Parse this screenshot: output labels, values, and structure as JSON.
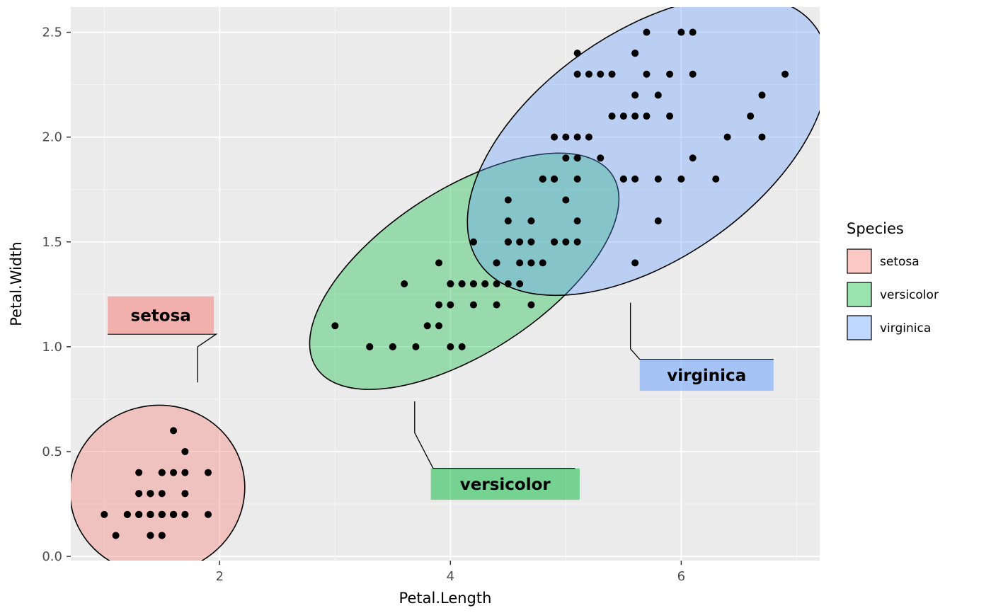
{
  "figure": {
    "background": "#FFFFFF",
    "panel_background": "#EBEBEB",
    "grid_color": "#FFFFFF",
    "axis_text_color": "#4D4D4D",
    "tick_mark_color": "#333333",
    "axis_title_color": "#000000"
  },
  "chart_data": {
    "type": "scatter",
    "xlabel": "Petal.Length",
    "ylabel": "Petal.Width",
    "xlim": [
      0.71,
      7.2
    ],
    "ylim": [
      -0.02,
      2.62
    ],
    "x_major_ticks": [
      2,
      4,
      6
    ],
    "x_tick_labels": [
      "2",
      "4",
      "6"
    ],
    "x_minor_ticks": [
      1,
      3,
      5,
      7
    ],
    "y_major_ticks": [
      0,
      0.5,
      1,
      1.5,
      2,
      2.5
    ],
    "y_tick_labels": [
      "0.0",
      "0.5",
      "1.0",
      "1.5",
      "2.0",
      "2.5"
    ],
    "y_minor_ticks": [
      0.25,
      0.75,
      1.25,
      1.75,
      2.25
    ],
    "grid": true,
    "point_color": "#000000",
    "legend": {
      "title": "Species",
      "position": "right",
      "entries": [
        {
          "label": "setosa",
          "color": "#F8766D"
        },
        {
          "label": "versicolor",
          "color": "#00BA38"
        },
        {
          "label": "virginica",
          "color": "#619CFF"
        }
      ]
    },
    "series": [
      {
        "name": "setosa",
        "color": "#F8766D",
        "ellipse": {
          "cx": 1.46,
          "cy": 0.32,
          "rx": 0.76,
          "ry": 0.4,
          "angle_deg": -15
        },
        "mark_label": {
          "text": "setosa",
          "x_left": 1.03,
          "x_right": 1.95,
          "y_top": 1.24,
          "y_bottom": 1.06
        },
        "connector": [
          [
            1.03,
            1.06
          ],
          [
            1.97,
            1.06
          ],
          [
            1.81,
            1.0
          ],
          [
            1.81,
            0.83
          ]
        ],
        "points": [
          [
            1.4,
            0.2
          ],
          [
            1.4,
            0.2
          ],
          [
            1.3,
            0.2
          ],
          [
            1.5,
            0.2
          ],
          [
            1.4,
            0.2
          ],
          [
            1.7,
            0.4
          ],
          [
            1.4,
            0.3
          ],
          [
            1.5,
            0.2
          ],
          [
            1.4,
            0.2
          ],
          [
            1.5,
            0.1
          ],
          [
            1.5,
            0.2
          ],
          [
            1.6,
            0.2
          ],
          [
            1.4,
            0.1
          ],
          [
            1.1,
            0.1
          ],
          [
            1.2,
            0.2
          ],
          [
            1.5,
            0.4
          ],
          [
            1.3,
            0.4
          ],
          [
            1.4,
            0.3
          ],
          [
            1.7,
            0.3
          ],
          [
            1.5,
            0.3
          ],
          [
            1.7,
            0.2
          ],
          [
            1.5,
            0.4
          ],
          [
            1.0,
            0.2
          ],
          [
            1.7,
            0.5
          ],
          [
            1.9,
            0.2
          ],
          [
            1.6,
            0.2
          ],
          [
            1.6,
            0.4
          ],
          [
            1.5,
            0.2
          ],
          [
            1.4,
            0.2
          ],
          [
            1.6,
            0.2
          ],
          [
            1.6,
            0.2
          ],
          [
            1.5,
            0.4
          ],
          [
            1.5,
            0.1
          ],
          [
            1.4,
            0.2
          ],
          [
            1.5,
            0.2
          ],
          [
            1.2,
            0.2
          ],
          [
            1.3,
            0.2
          ],
          [
            1.4,
            0.1
          ],
          [
            1.3,
            0.2
          ],
          [
            1.5,
            0.2
          ],
          [
            1.3,
            0.3
          ],
          [
            1.3,
            0.3
          ],
          [
            1.3,
            0.2
          ],
          [
            1.6,
            0.6
          ],
          [
            1.9,
            0.4
          ],
          [
            1.4,
            0.3
          ],
          [
            1.6,
            0.2
          ],
          [
            1.4,
            0.2
          ],
          [
            1.5,
            0.2
          ],
          [
            1.4,
            0.2
          ]
        ]
      },
      {
        "name": "versicolor",
        "color": "#00BA38",
        "ellipse": {
          "cx": 4.12,
          "cy": 1.36,
          "rx": 1.53,
          "ry": 0.39,
          "angle_deg": -33
        },
        "mark_label": {
          "text": "versicolor",
          "x_left": 3.83,
          "x_right": 5.12,
          "y_top": 0.42,
          "y_bottom": 0.27
        },
        "connector": [
          [
            3.69,
            0.74
          ],
          [
            3.69,
            0.59
          ],
          [
            3.85,
            0.42
          ],
          [
            5.08,
            0.42
          ]
        ],
        "points": [
          [
            4.7,
            1.4
          ],
          [
            4.5,
            1.5
          ],
          [
            4.9,
            1.5
          ],
          [
            4.0,
            1.3
          ],
          [
            4.6,
            1.5
          ],
          [
            4.5,
            1.3
          ],
          [
            4.7,
            1.6
          ],
          [
            3.3,
            1.0
          ],
          [
            4.6,
            1.3
          ],
          [
            3.9,
            1.4
          ],
          [
            3.5,
            1.0
          ],
          [
            4.2,
            1.5
          ],
          [
            4.0,
            1.0
          ],
          [
            4.7,
            1.4
          ],
          [
            3.6,
            1.3
          ],
          [
            4.4,
            1.4
          ],
          [
            4.5,
            1.5
          ],
          [
            4.1,
            1.0
          ],
          [
            4.5,
            1.5
          ],
          [
            3.9,
            1.1
          ],
          [
            4.8,
            1.8
          ],
          [
            4.0,
            1.3
          ],
          [
            4.9,
            1.5
          ],
          [
            4.7,
            1.2
          ],
          [
            4.3,
            1.3
          ],
          [
            4.4,
            1.4
          ],
          [
            4.8,
            1.4
          ],
          [
            5.0,
            1.7
          ],
          [
            4.5,
            1.5
          ],
          [
            3.5,
            1.0
          ],
          [
            3.8,
            1.1
          ],
          [
            3.7,
            1.0
          ],
          [
            3.9,
            1.2
          ],
          [
            5.1,
            1.6
          ],
          [
            4.5,
            1.5
          ],
          [
            4.5,
            1.6
          ],
          [
            4.7,
            1.5
          ],
          [
            4.4,
            1.3
          ],
          [
            4.1,
            1.3
          ],
          [
            4.0,
            1.3
          ],
          [
            4.4,
            1.2
          ],
          [
            4.6,
            1.4
          ],
          [
            4.0,
            1.2
          ],
          [
            3.3,
            1.0
          ],
          [
            4.2,
            1.3
          ],
          [
            4.2,
            1.2
          ],
          [
            4.2,
            1.3
          ],
          [
            4.3,
            1.3
          ],
          [
            3.0,
            1.1
          ],
          [
            4.1,
            1.3
          ]
        ]
      },
      {
        "name": "virginica",
        "color": "#619CFF",
        "ellipse": {
          "cx": 5.71,
          "cy": 1.96,
          "rx": 1.78,
          "ry": 0.54,
          "angle_deg": -35
        },
        "mark_label": {
          "text": "virginica",
          "x_left": 5.64,
          "x_right": 6.8,
          "y_top": 0.94,
          "y_bottom": 0.79
        },
        "connector": [
          [
            5.56,
            1.21
          ],
          [
            5.56,
            0.99
          ],
          [
            5.64,
            0.94
          ],
          [
            6.8,
            0.94
          ]
        ],
        "points": [
          [
            6.0,
            2.5
          ],
          [
            5.1,
            1.9
          ],
          [
            5.9,
            2.1
          ],
          [
            5.6,
            1.8
          ],
          [
            5.8,
            2.2
          ],
          [
            6.6,
            2.1
          ],
          [
            4.5,
            1.7
          ],
          [
            6.3,
            1.8
          ],
          [
            5.8,
            1.8
          ],
          [
            6.1,
            2.5
          ],
          [
            5.1,
            2.0
          ],
          [
            5.3,
            1.9
          ],
          [
            5.5,
            2.1
          ],
          [
            5.0,
            2.0
          ],
          [
            5.1,
            2.4
          ],
          [
            5.3,
            2.3
          ],
          [
            5.5,
            1.8
          ],
          [
            6.7,
            2.2
          ],
          [
            6.9,
            2.3
          ],
          [
            5.0,
            1.5
          ],
          [
            5.7,
            2.3
          ],
          [
            4.9,
            2.0
          ],
          [
            6.7,
            2.0
          ],
          [
            4.9,
            1.8
          ],
          [
            5.7,
            2.1
          ],
          [
            6.0,
            1.8
          ],
          [
            4.8,
            1.8
          ],
          [
            4.9,
            1.8
          ],
          [
            5.6,
            2.1
          ],
          [
            5.8,
            1.6
          ],
          [
            6.1,
            1.9
          ],
          [
            6.4,
            2.0
          ],
          [
            5.6,
            2.2
          ],
          [
            5.1,
            1.5
          ],
          [
            5.6,
            1.4
          ],
          [
            6.1,
            2.3
          ],
          [
            5.6,
            2.4
          ],
          [
            5.5,
            1.8
          ],
          [
            4.8,
            1.8
          ],
          [
            5.4,
            2.1
          ],
          [
            5.6,
            2.4
          ],
          [
            5.1,
            2.3
          ],
          [
            5.1,
            1.9
          ],
          [
            5.9,
            2.3
          ],
          [
            5.7,
            2.5
          ],
          [
            5.2,
            2.3
          ],
          [
            5.0,
            1.9
          ],
          [
            5.2,
            2.0
          ],
          [
            5.4,
            2.3
          ],
          [
            5.1,
            1.8
          ]
        ]
      }
    ]
  }
}
